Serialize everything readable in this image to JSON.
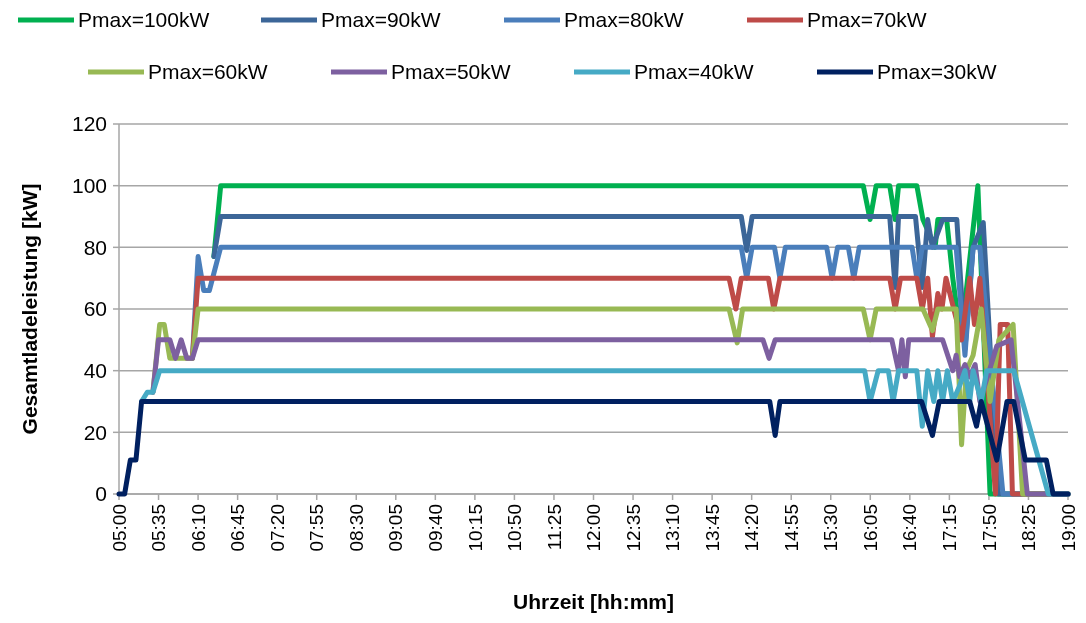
{
  "chart_data": {
    "type": "line",
    "xlabel": "Uhrzeit [hh:mm]",
    "ylabel": "Gesamtladeleistung [kW]",
    "ylim": [
      0,
      120
    ],
    "yticks": [
      0,
      20,
      40,
      60,
      80,
      100,
      120
    ],
    "xlim": [
      5,
      19
    ],
    "xticks": [
      {
        "value": 5,
        "label": "05:00"
      },
      {
        "value": 5.5833,
        "label": "05:35"
      },
      {
        "value": 6.1667,
        "label": "06:10"
      },
      {
        "value": 6.75,
        "label": "06:45"
      },
      {
        "value": 7.3333,
        "label": "07:20"
      },
      {
        "value": 7.9167,
        "label": "07:55"
      },
      {
        "value": 8.5,
        "label": "08:30"
      },
      {
        "value": 9.0833,
        "label": "09:05"
      },
      {
        "value": 9.6667,
        "label": "09:40"
      },
      {
        "value": 10.25,
        "label": "10:15"
      },
      {
        "value": 10.8333,
        "label": "10:50"
      },
      {
        "value": 11.4167,
        "label": "11:25"
      },
      {
        "value": 12,
        "label": "12:00"
      },
      {
        "value": 12.5833,
        "label": "12:35"
      },
      {
        "value": 13.1667,
        "label": "13:10"
      },
      {
        "value": 13.75,
        "label": "13:45"
      },
      {
        "value": 14.3333,
        "label": "14:20"
      },
      {
        "value": 14.9167,
        "label": "14:55"
      },
      {
        "value": 15.5,
        "label": "15:30"
      },
      {
        "value": 16.0833,
        "label": "16:05"
      },
      {
        "value": 16.6667,
        "label": "16:40"
      },
      {
        "value": 17.25,
        "label": "17:15"
      },
      {
        "value": 17.8333,
        "label": "17:50"
      },
      {
        "value": 18.4167,
        "label": "18:25"
      },
      {
        "value": 19,
        "label": "19:00"
      }
    ],
    "grid": "y",
    "legend": "top",
    "line_style": "solid",
    "marker": "none",
    "series": [
      {
        "name": "Pmax=100kW",
        "color": "#00b050",
        "x": [
          6.4,
          6.5,
          15.98,
          16.08,
          16.17,
          16.37,
          16.45,
          16.5,
          16.77,
          16.86,
          17.04,
          17.08,
          17.21,
          17.3,
          17.42,
          17.67,
          17.85,
          19
        ],
        "values": [
          77,
          100,
          100,
          89,
          100,
          100,
          89,
          100,
          100,
          89,
          80,
          89,
          89,
          70,
          50,
          100,
          0,
          0
        ]
      },
      {
        "name": "Pmax=90kW",
        "color": "#3c6698",
        "x": [
          6.4,
          6.5,
          14.18,
          14.26,
          14.34,
          16.37,
          16.45,
          16.5,
          16.75,
          16.85,
          16.93,
          17.0,
          17.15,
          17.36,
          17.48,
          17.6,
          17.75,
          17.97,
          19
        ],
        "values": [
          77,
          90,
          90,
          79,
          90,
          90,
          67,
          90,
          90,
          67,
          89,
          80,
          89,
          89,
          47,
          80,
          88,
          0,
          0
        ]
      },
      {
        "name": "Pmax=80kW",
        "color": "#4a7ebb",
        "x": [
          6.083,
          6.167,
          6.25,
          6.333,
          6.5,
          14.18,
          14.26,
          14.34,
          14.67,
          14.75,
          14.83,
          15.44,
          15.52,
          15.6,
          15.76,
          15.84,
          15.92,
          16.7,
          16.77,
          16.85,
          17.35,
          17.48,
          17.6,
          17.7,
          18.04,
          19
        ],
        "values": [
          44,
          77,
          66,
          66,
          80,
          80,
          70,
          80,
          80,
          70,
          80,
          80,
          70,
          80,
          80,
          70,
          80,
          80,
          70,
          80,
          80,
          45,
          80,
          80,
          0,
          0
        ]
      },
      {
        "name": "Pmax=70kW",
        "color": "#be4b48",
        "x": [
          6,
          6.083,
          6.167,
          14,
          14.1,
          14.18,
          14.58,
          14.66,
          14.75,
          16.37,
          16.45,
          16.53,
          16.77,
          16.85,
          16.93,
          17,
          17.08,
          17.14,
          17.2,
          17.43,
          17.55,
          17.62,
          17.7,
          17.93,
          18,
          18.11,
          18.18,
          19
        ],
        "values": [
          44,
          44,
          70,
          70,
          60,
          70,
          70,
          60,
          70,
          70,
          60,
          70,
          70,
          60,
          70,
          51,
          65,
          60,
          70,
          50,
          70,
          55,
          70,
          0,
          55,
          55,
          0,
          0
        ]
      },
      {
        "name": "Pmax=60kW",
        "color": "#98b954",
        "x": [
          5.5,
          5.6,
          5.667,
          5.75,
          6.083,
          6.167,
          14,
          14.12,
          14.2,
          15.98,
          16.08,
          16.17,
          16.86,
          17,
          17.08,
          17.35,
          17.43,
          17.5,
          17.6,
          17.72,
          17.85,
          17.98,
          18.19,
          18.33,
          19
        ],
        "values": [
          33,
          55,
          55,
          44,
          44,
          60,
          60,
          49,
          60,
          60,
          50,
          60,
          60,
          53,
          60,
          60,
          16,
          40,
          45,
          60,
          30,
          50,
          55,
          0,
          0
        ]
      },
      {
        "name": "Pmax=50kW",
        "color": "#7d60a0",
        "x": [
          5.5,
          5.583,
          5.75,
          5.833,
          5.917,
          6,
          6.083,
          6.167,
          14.5,
          14.59,
          14.68,
          16.4,
          16.5,
          16.55,
          16.6,
          16.65,
          17.15,
          17.3,
          17.35,
          17.4,
          17.48,
          17.55,
          17.63,
          17.7,
          17.95,
          18.16,
          18.4,
          19
        ],
        "values": [
          33,
          50,
          50,
          44,
          50,
          44,
          44,
          50,
          50,
          44,
          50,
          50,
          40,
          50,
          38,
          50,
          50,
          40,
          45,
          38,
          42,
          38,
          42,
          30,
          48,
          50,
          0,
          0
        ]
      },
      {
        "name": "Pmax=40kW",
        "color": "#46aac5",
        "x": [
          5.333,
          5.417,
          5.5,
          5.6,
          16,
          16.08,
          16.2,
          16.35,
          16.42,
          16.5,
          16.77,
          16.85,
          16.93,
          17.02,
          17.08,
          17.15,
          17.22,
          17.3,
          17.4,
          17.48,
          17.55,
          17.6,
          17.72,
          17.8,
          18.1,
          18.2,
          18.71,
          19
        ],
        "values": [
          30,
          33,
          33,
          40,
          40,
          30,
          40,
          40,
          30,
          40,
          40,
          22,
          40,
          30,
          40,
          30,
          40,
          30,
          35,
          40,
          30,
          40,
          30,
          40,
          40,
          40,
          0,
          0
        ]
      },
      {
        "name": "Pmax=30kW",
        "color": "#002060",
        "x": [
          5,
          5.083,
          5.167,
          5.25,
          5.333,
          14.6,
          14.68,
          14.75,
          16.84,
          17,
          17.1,
          17.55,
          17.65,
          17.72,
          17.95,
          18.1,
          18.2,
          18.37,
          18.68,
          18.78,
          19
        ],
        "values": [
          0,
          0,
          11,
          11,
          30,
          30,
          19,
          30,
          30,
          19,
          30,
          30,
          22,
          30,
          11,
          30,
          30,
          11,
          11,
          0,
          0
        ]
      }
    ]
  }
}
